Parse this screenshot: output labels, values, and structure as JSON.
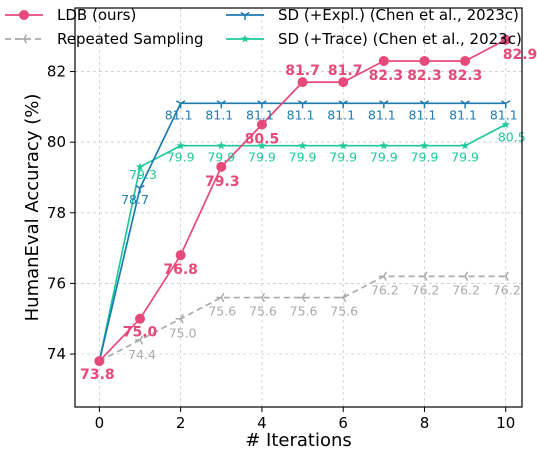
{
  "chart_data": {
    "type": "line",
    "xlabel": "# Iterations",
    "ylabel": "HumanEval Accuracy (%)",
    "xlim": [
      -0.6,
      10.4
    ],
    "ylim": [
      72.5,
      83.8
    ],
    "x_ticks": [
      0,
      2,
      4,
      6,
      8,
      10
    ],
    "y_ticks": [
      74,
      76,
      78,
      80,
      82
    ],
    "grid": true,
    "legend_position": "top",
    "series": [
      {
        "name": "LDB (ours)",
        "color": "#e64a7a",
        "marker": "circle",
        "dash": "solid",
        "x": [
          0,
          1,
          2,
          3,
          4,
          5,
          6,
          7,
          8,
          9,
          10
        ],
        "values": [
          73.8,
          75.0,
          76.8,
          79.3,
          80.5,
          81.7,
          81.7,
          82.3,
          82.3,
          82.3,
          82.9
        ],
        "labels": [
          "73.8",
          "75.0",
          "76.8",
          "79.3",
          "80.5",
          "81.7",
          "81.7",
          "82.3",
          "82.3",
          "82.3",
          "82.9"
        ]
      },
      {
        "name": "Repeated Sampling",
        "color": "#aaaaaa",
        "marker": "tri-left",
        "dash": "dashed",
        "x": [
          0,
          1,
          2,
          3,
          4,
          5,
          6,
          7,
          8,
          9,
          10
        ],
        "values": [
          73.8,
          74.4,
          75.0,
          75.6,
          75.6,
          75.6,
          75.6,
          76.2,
          76.2,
          76.2,
          76.2
        ],
        "labels": [
          "",
          "74.4",
          "75.0",
          "75.6",
          "75.6",
          "75.6",
          "75.6",
          "76.2",
          "76.2",
          "76.2",
          "76.2"
        ]
      },
      {
        "name": "SD (+Expl.) (Chen et al., 2023c)",
        "color": "#1f7bb0",
        "marker": "tri-down",
        "dash": "solid",
        "x": [
          0,
          1,
          2,
          3,
          4,
          5,
          6,
          7,
          8,
          9,
          10
        ],
        "values": [
          73.8,
          78.7,
          81.1,
          81.1,
          81.1,
          81.1,
          81.1,
          81.1,
          81.1,
          81.1,
          81.1
        ],
        "labels": [
          "",
          "78.7",
          "81.1",
          "81.1",
          "81.1",
          "81.1",
          "81.1",
          "81.1",
          "81.1",
          "81.1",
          "81.1"
        ]
      },
      {
        "name": "SD (+Trace) (Chen et al., 2023c)",
        "color": "#1ec99b",
        "marker": "star",
        "dash": "solid",
        "x": [
          0,
          1,
          2,
          3,
          4,
          5,
          6,
          7,
          8,
          9,
          10
        ],
        "values": [
          73.8,
          79.3,
          79.9,
          79.9,
          79.9,
          79.9,
          79.9,
          79.9,
          79.9,
          79.9,
          80.5
        ],
        "labels": [
          "",
          "79.3",
          "79.9",
          "79.9",
          "79.9",
          "79.9",
          "79.9",
          "79.9",
          "79.9",
          "79.9",
          "80.5"
        ]
      }
    ]
  }
}
